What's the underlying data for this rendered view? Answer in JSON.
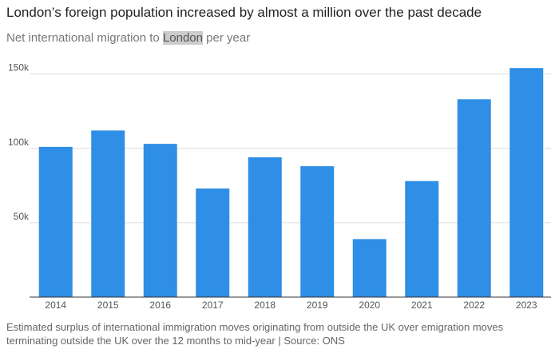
{
  "chart_data": {
    "type": "bar",
    "title": "London’s foreign population increased by almost a million over the past decade",
    "subtitle_parts": [
      "Net international migration to ",
      "London",
      " per year"
    ],
    "note": "Estimated surplus of international immigration moves originating from outside the UK over emigration moves terminating outside the UK over the 12 months to mid-year | Source: ONS",
    "categories": [
      "2014",
      "2015",
      "2016",
      "2017",
      "2018",
      "2019",
      "2020",
      "2021",
      "2022",
      "2023"
    ],
    "values": [
      101000,
      112000,
      103000,
      73000,
      94000,
      88000,
      39000,
      78000,
      133000,
      154000
    ],
    "color": "#2f8ee5",
    "ylim": [
      0,
      160000
    ],
    "yticks": [
      {
        "value": 50000,
        "label": "50k"
      },
      {
        "value": 100000,
        "label": "100k"
      },
      {
        "value": 150000,
        "label": "150k"
      }
    ],
    "grid": true
  }
}
